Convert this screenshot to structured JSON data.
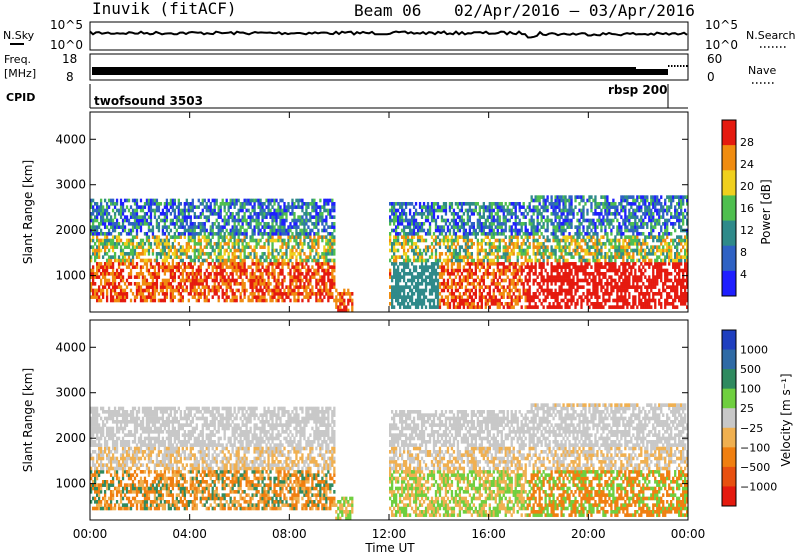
{
  "header": {
    "station": "Inuvik (fitACF)",
    "beam": "Beam 06",
    "date_range": "02/Apr/2016 – 03/Apr/2016"
  },
  "noise_panel": {
    "left_label": "N.Sky",
    "right_label": "N.Search",
    "left_ticks": [
      "10^5",
      "10^0"
    ],
    "right_ticks": [
      "10^5",
      "10^0"
    ]
  },
  "freq_panel": {
    "left_label_1": "Freq.",
    "left_label_2": "[MHz]",
    "right_label": "Nave",
    "left_ticks": [
      "18",
      "8"
    ],
    "right_ticks": [
      "60",
      "0"
    ]
  },
  "cpid_panel": {
    "label": "CPID",
    "programs": [
      "twofsound 3503",
      "rbsp 200"
    ]
  },
  "chart_data": [
    {
      "type": "heatmap",
      "name": "power",
      "ylabel": "Slant Range [km]",
      "y_ticks": [
        "1000",
        "2000",
        "3000",
        "4000"
      ],
      "ylim": [
        200,
        4600
      ],
      "colorbar_label": "Power [dB]",
      "colorbar_ticks": [
        "4",
        "8",
        "12",
        "16",
        "20",
        "24",
        "28"
      ],
      "colorbar_colors": [
        "#1f1fff",
        "#2f62c4",
        "#2f8a8a",
        "#4fbf4f",
        "#f0d01e",
        "#f08c10",
        "#e51a0f"
      ],
      "echo_regions_range_km": [
        {
          "t_start_h": 0.0,
          "t_end_h": 9.7,
          "range_min": 600,
          "range_max": 2700,
          "level": "strong"
        },
        {
          "t_start_h": 12.0,
          "t_end_h": 17.5,
          "range_min": 300,
          "range_max": 2600,
          "level": "mixed"
        },
        {
          "t_start_h": 17.5,
          "t_end_h": 24.0,
          "range_min": 300,
          "range_max": 2700,
          "level": "strong"
        }
      ]
    },
    {
      "type": "heatmap",
      "name": "velocity",
      "xlabel": "Time UT",
      "x_ticks": [
        "00:00",
        "04:00",
        "08:00",
        "12:00",
        "16:00",
        "20:00",
        "00:00"
      ],
      "ylabel": "Slant Range [km]",
      "y_ticks": [
        "1000",
        "2000",
        "3000",
        "4000"
      ],
      "ylim": [
        200,
        4600
      ],
      "colorbar_label": "Velocity [m s⁻¹]",
      "colorbar_ticks": [
        "1000",
        "500",
        "100",
        "25",
        "−25",
        "−100",
        "−500",
        "−1000"
      ],
      "colorbar_colors": [
        "#1f3fbf",
        "#2f6aa5",
        "#2f8a5f",
        "#6fcf3f",
        "#c8c8c8",
        "#f0b050",
        "#f07f10",
        "#e85010",
        "#e51a0f"
      ]
    }
  ],
  "colors": {
    "axis": "#000000",
    "ground_scatter": "#c8c8c8"
  }
}
